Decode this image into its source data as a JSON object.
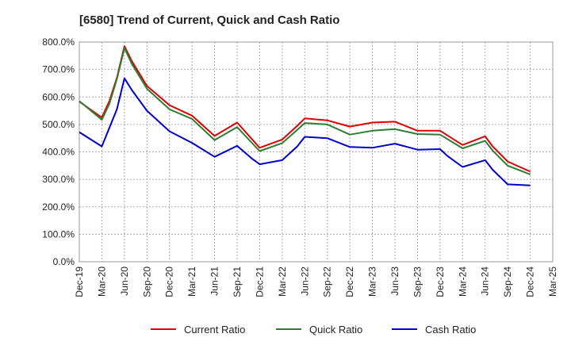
{
  "chart_data": {
    "type": "line",
    "title": "[6580]  Trend of Current, Quick and Cash Ratio",
    "xlabel": "",
    "ylabel": "",
    "ylim": [
      0,
      800
    ],
    "yticks": [
      "0.0%",
      "100.0%",
      "200.0%",
      "300.0%",
      "400.0%",
      "500.0%",
      "600.0%",
      "700.0%",
      "800.0%"
    ],
    "x_tick_labels": [
      "Dec-19",
      "Mar-20",
      "Jun-20",
      "Sep-20",
      "Dec-20",
      "Mar-21",
      "Jun-21",
      "Sep-21",
      "Dec-21",
      "Mar-22",
      "Jun-22",
      "Sep-22",
      "Dec-22",
      "Mar-23",
      "Jun-23",
      "Sep-23",
      "Dec-23",
      "Mar-24",
      "Jun-24",
      "Sep-24",
      "Dec-24",
      "Mar-25"
    ],
    "x_months": [
      0,
      3,
      6,
      9,
      12,
      15,
      18,
      21,
      24,
      27,
      30,
      33,
      36,
      39,
      42,
      45,
      48,
      51,
      54,
      57,
      60,
      63
    ],
    "x_range_months": [
      0,
      63
    ],
    "grid": true,
    "legend_position": "bottom",
    "series": [
      {
        "name": "Current Ratio",
        "color": "#dd0000",
        "points": [
          [
            0,
            583
          ],
          [
            3,
            525
          ],
          [
            4,
            585
          ],
          [
            5,
            670
          ],
          [
            6,
            785
          ],
          [
            7,
            730
          ],
          [
            9,
            640
          ],
          [
            12,
            570
          ],
          [
            15,
            532
          ],
          [
            18,
            458
          ],
          [
            21,
            507
          ],
          [
            24,
            415
          ],
          [
            27,
            445
          ],
          [
            29,
            495
          ],
          [
            30,
            522
          ],
          [
            33,
            515
          ],
          [
            36,
            492
          ],
          [
            39,
            507
          ],
          [
            42,
            510
          ],
          [
            45,
            477
          ],
          [
            48,
            477
          ],
          [
            51,
            425
          ],
          [
            54,
            457
          ],
          [
            55,
            420
          ],
          [
            57,
            365
          ],
          [
            60,
            328
          ]
        ]
      },
      {
        "name": "Quick Ratio",
        "color": "#2e7d32",
        "points": [
          [
            0,
            585
          ],
          [
            3,
            517
          ],
          [
            4,
            575
          ],
          [
            5,
            665
          ],
          [
            6,
            778
          ],
          [
            7,
            720
          ],
          [
            9,
            630
          ],
          [
            12,
            555
          ],
          [
            15,
            520
          ],
          [
            18,
            443
          ],
          [
            21,
            490
          ],
          [
            24,
            403
          ],
          [
            27,
            432
          ],
          [
            29,
            480
          ],
          [
            30,
            505
          ],
          [
            33,
            500
          ],
          [
            36,
            463
          ],
          [
            39,
            477
          ],
          [
            42,
            483
          ],
          [
            45,
            465
          ],
          [
            48,
            463
          ],
          [
            51,
            413
          ],
          [
            54,
            440
          ],
          [
            55,
            405
          ],
          [
            57,
            350
          ],
          [
            60,
            318
          ]
        ]
      },
      {
        "name": "Cash Ratio",
        "color": "#0000cc",
        "points": [
          [
            0,
            472
          ],
          [
            3,
            420
          ],
          [
            5,
            555
          ],
          [
            6,
            668
          ],
          [
            7,
            625
          ],
          [
            9,
            550
          ],
          [
            12,
            475
          ],
          [
            15,
            433
          ],
          [
            18,
            382
          ],
          [
            21,
            422
          ],
          [
            23,
            375
          ],
          [
            24,
            355
          ],
          [
            27,
            370
          ],
          [
            29,
            420
          ],
          [
            30,
            455
          ],
          [
            33,
            450
          ],
          [
            36,
            418
          ],
          [
            39,
            415
          ],
          [
            42,
            430
          ],
          [
            45,
            408
          ],
          [
            48,
            410
          ],
          [
            49,
            385
          ],
          [
            51,
            345
          ],
          [
            54,
            370
          ],
          [
            55,
            335
          ],
          [
            57,
            282
          ],
          [
            60,
            278
          ]
        ]
      }
    ]
  }
}
